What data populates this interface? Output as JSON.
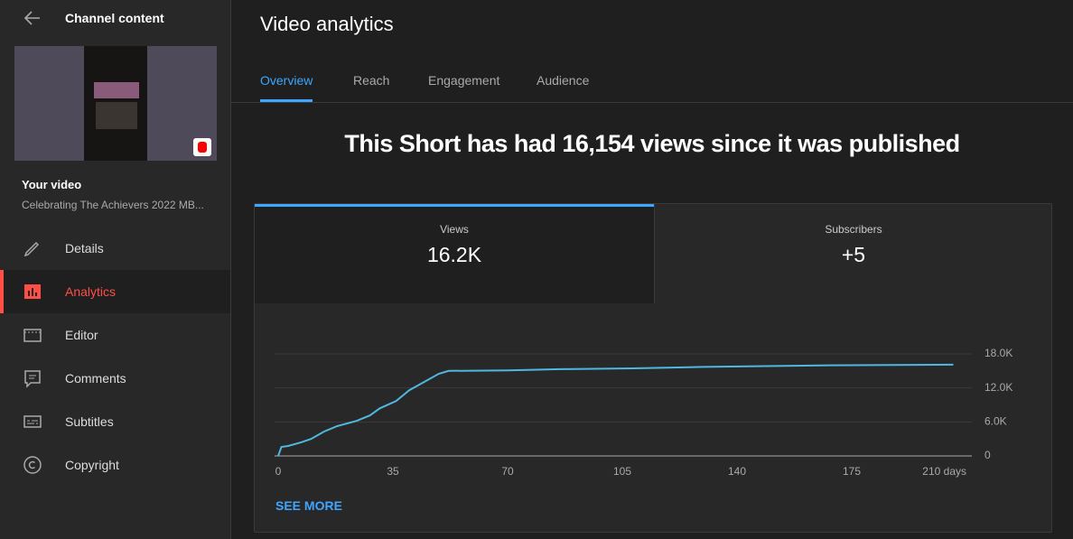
{
  "sidebar": {
    "header": "Channel content",
    "video_label": "Your video",
    "video_title": "Celebrating The Achievers 2022 MB...",
    "nav": [
      "Details",
      "Analytics",
      "Editor",
      "Comments",
      "Subtitles",
      "Copyright"
    ]
  },
  "main": {
    "title": "Video analytics",
    "tabs": [
      "Overview",
      "Reach",
      "Engagement",
      "Audience"
    ],
    "headline": "This Short has had 16,154 views since it was published",
    "metrics": [
      {
        "label": "Views",
        "value": "16.2K"
      },
      {
        "label": "Subscribers",
        "value": "+5"
      }
    ],
    "see_more": "SEE MORE"
  },
  "chart_data": {
    "type": "line",
    "x": [
      0,
      1,
      3,
      7,
      10,
      14,
      18,
      24,
      28,
      31,
      36,
      40,
      45,
      49,
      52,
      70,
      86,
      108,
      130,
      149,
      168,
      206
    ],
    "series": [
      {
        "name": "Views",
        "color": "#4fb8e0",
        "values": [
          0,
          1600,
          1750,
          2400,
          3000,
          4300,
          5250,
          6200,
          7150,
          8400,
          9700,
          11600,
          13200,
          14500,
          15000,
          15100,
          15300,
          15450,
          15700,
          15850,
          16000,
          16100
        ]
      }
    ],
    "xlim": [
      0,
      210
    ],
    "xticks": [
      0,
      35,
      70,
      105,
      140,
      175,
      {
        "value": 210,
        "label": "210 days"
      }
    ],
    "ylim": [
      0,
      18000
    ],
    "yticks": [
      0,
      {
        "value": 6000,
        "label": "6.0K"
      },
      {
        "value": 12000,
        "label": "12.0K"
      },
      {
        "value": 18000,
        "label": "18.0K"
      }
    ],
    "grid": true
  }
}
